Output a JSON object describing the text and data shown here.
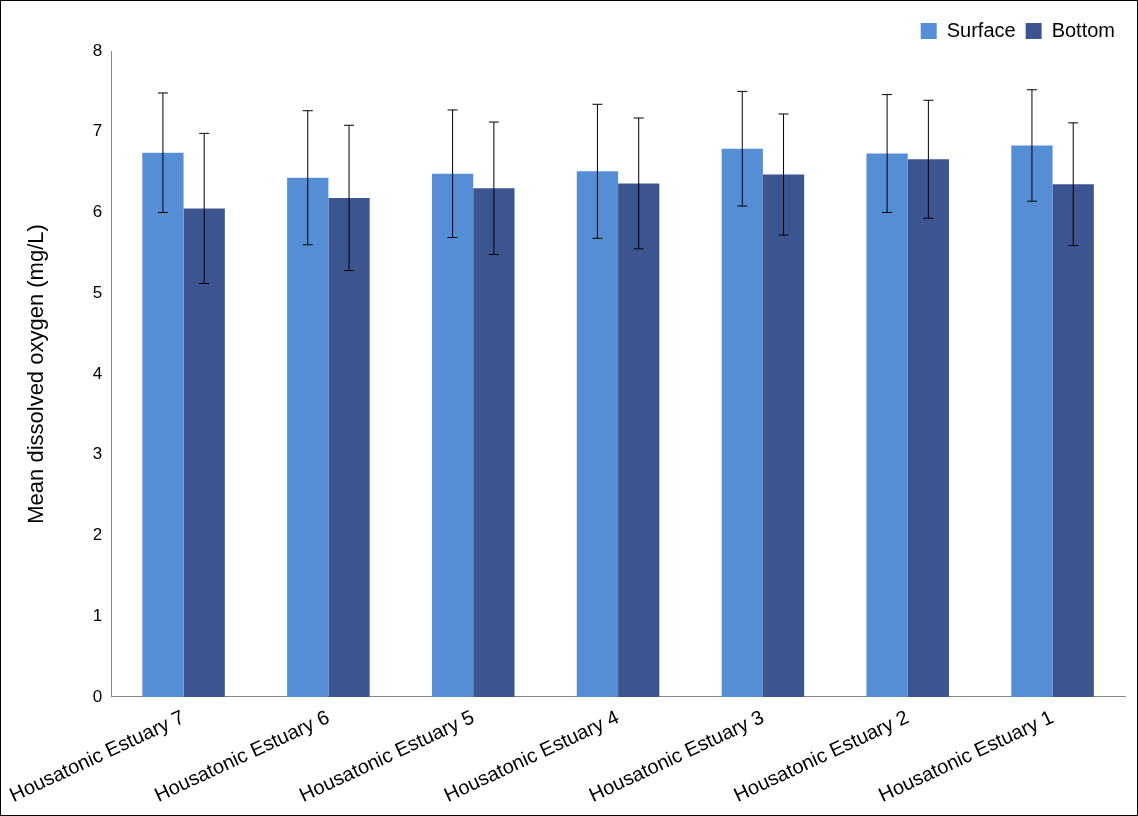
{
  "chart_data": {
    "type": "bar",
    "ylabel": "Mean dissolved oxygen (mg/L)",
    "categories": [
      "Housatonic Estuary 7",
      "Housatonic Estuary 6",
      "Housatonic Estuary 5",
      "Housatonic Estuary 4",
      "Housatonic Estuary 3",
      "Housatonic Estuary 2",
      "Housatonic Estuary 1"
    ],
    "series": [
      {
        "name": "Surface",
        "color": "#558ed5",
        "values": [
          6.74,
          6.43,
          6.48,
          6.51,
          6.79,
          6.73,
          6.83
        ],
        "errors": [
          0.74,
          0.83,
          0.79,
          0.83,
          0.71,
          0.73,
          0.69
        ]
      },
      {
        "name": "Bottom",
        "color": "#3c5590",
        "values": [
          6.05,
          6.18,
          6.3,
          6.36,
          6.47,
          6.66,
          6.35
        ],
        "errors": [
          0.93,
          0.9,
          0.82,
          0.81,
          0.75,
          0.73,
          0.76
        ]
      }
    ],
    "ylim": [
      0,
      8
    ],
    "yticks": [
      0,
      1,
      2,
      3,
      4,
      5,
      6,
      7,
      8
    ],
    "grid": false,
    "legend": "top right"
  }
}
